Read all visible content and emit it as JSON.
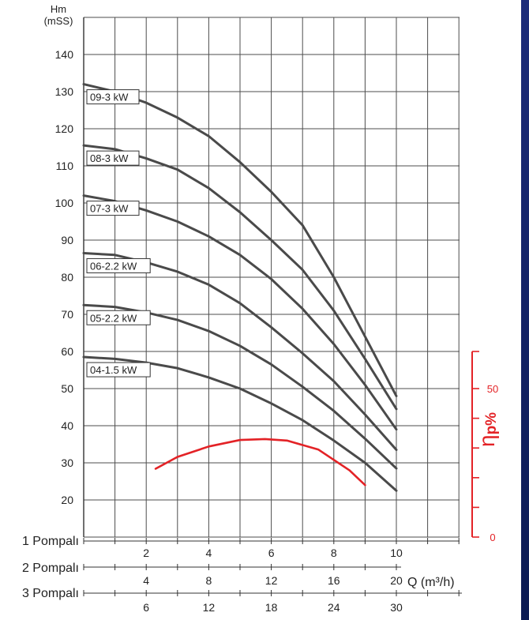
{
  "chart_data": {
    "type": "line",
    "y_axis": {
      "title_line1": "Hm",
      "title_line2": "(mSS)",
      "ticks": [
        "20",
        "30",
        "40",
        "50",
        "60",
        "70",
        "80",
        "90",
        "100",
        "110",
        "120",
        "130",
        "140"
      ],
      "ylim": [
        10,
        150
      ],
      "grid": true
    },
    "efficiency_axis": {
      "symbol": "η",
      "subscript": "p%",
      "ticks": [
        "0",
        "50"
      ],
      "range": [
        0,
        50
      ],
      "color": "#e32226"
    },
    "x_axes": [
      {
        "label": "1 Pompalı",
        "ticks": [
          "2",
          "4",
          "6",
          "8",
          "10"
        ],
        "values": [
          2,
          4,
          6,
          8,
          10
        ]
      },
      {
        "label": "2 Pompalı",
        "ticks": [
          "4",
          "8",
          "12",
          "16",
          "20"
        ],
        "values": [
          4,
          8,
          12,
          16,
          20
        ]
      },
      {
        "label": "3 Pompalı",
        "ticks": [
          "6",
          "12",
          "18",
          "24",
          "30"
        ],
        "values": [
          6,
          12,
          18,
          24,
          30
        ]
      }
    ],
    "x_unit": "Q (m³/h)",
    "xlim_1pump": [
      0,
      12
    ],
    "series": [
      {
        "name": "09-3 kW",
        "label": "09-3 kW",
        "x": [
          0,
          1,
          2,
          3,
          4,
          5,
          6,
          7,
          8,
          9,
          10
        ],
        "y": [
          132,
          130,
          127,
          123,
          118,
          111,
          103,
          94,
          80,
          64,
          48
        ]
      },
      {
        "name": "08-3 kW",
        "label": "08-3 kW",
        "x": [
          0,
          1,
          2,
          3,
          4,
          5,
          6,
          7,
          8,
          9,
          10
        ],
        "y": [
          115.5,
          114.5,
          112,
          109,
          104,
          97.5,
          90,
          82,
          71,
          58,
          44.5
        ]
      },
      {
        "name": "07-3 kW",
        "label": "07-3 kW",
        "x": [
          0,
          1,
          2,
          3,
          4,
          5,
          6,
          7,
          8,
          9,
          10
        ],
        "y": [
          102,
          100.5,
          98,
          95,
          91,
          86,
          79.5,
          71.5,
          62,
          51,
          39
        ]
      },
      {
        "name": "06-2.2 kW",
        "label": "06-2.2 kW",
        "x": [
          0,
          1,
          2,
          3,
          4,
          5,
          6,
          7,
          8,
          9,
          10
        ],
        "y": [
          86.5,
          86,
          84,
          81.5,
          78,
          73,
          66.5,
          59.5,
          52,
          43,
          33.5
        ]
      },
      {
        "name": "05-2.2 kW",
        "label": "05-2.2 kW",
        "x": [
          0,
          1,
          2,
          3,
          4,
          5,
          6,
          7,
          8,
          9,
          10
        ],
        "y": [
          72.5,
          72,
          70.5,
          68.5,
          65.5,
          61.5,
          56.5,
          50.5,
          44,
          36.5,
          28.5
        ]
      },
      {
        "name": "04-1.5 kW",
        "label": "04-1.5 kW",
        "x": [
          0,
          1,
          2,
          3,
          4,
          5,
          6,
          7,
          8,
          9,
          10
        ],
        "y": [
          58.5,
          58,
          57,
          55.5,
          53,
          50,
          46,
          41.5,
          36,
          30,
          22.5
        ]
      }
    ],
    "efficiency": {
      "x": [
        2.3,
        3,
        4,
        5,
        5.8,
        6.5,
        7.5,
        8.5,
        9
      ],
      "eta": [
        23,
        27,
        30.5,
        32.7,
        33,
        32.5,
        29.5,
        22.5,
        17.5
      ]
    },
    "colors": {
      "curve": "#4a4a4a",
      "grid": "#4d4d4d",
      "efficiency": "#e32226",
      "stripe_top": "#1c2c7a",
      "stripe_bottom": "#0b1a52"
    }
  }
}
